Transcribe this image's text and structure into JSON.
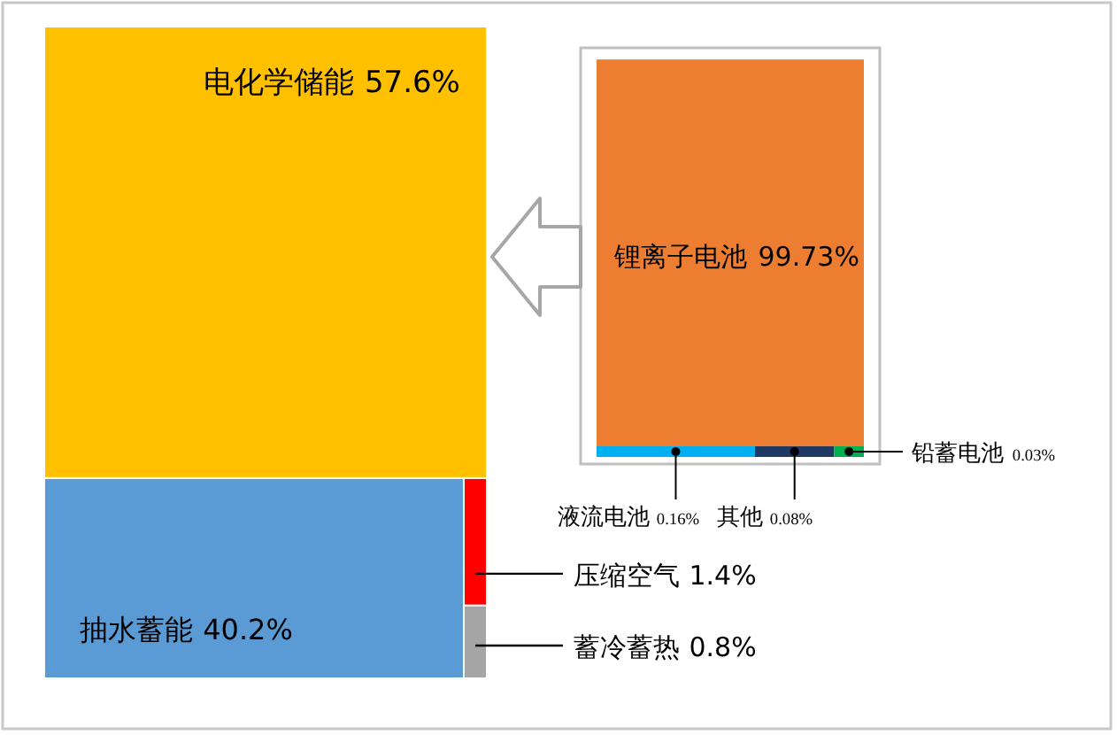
{
  "chart_data": [
    {
      "type": "other",
      "categories": [
        "电化学储能",
        "抽水蓄能",
        "压缩空气",
        "蓄冷蓄热"
      ],
      "values": [
        57.6,
        40.2,
        1.4,
        0.8
      ],
      "value_labels": [
        "57.6%",
        "40.2%",
        "1.4%",
        "0.8%"
      ],
      "colors": [
        "#ffc000",
        "#5b9bd5",
        "#ff0000",
        "#a5a5a5"
      ]
    },
    {
      "type": "other",
      "categories": [
        "锂离子电池",
        "液流电池",
        "其他",
        "铅蓄电池"
      ],
      "values": [
        99.73,
        0.16,
        0.08,
        0.03
      ],
      "value_labels": [
        "99.73%",
        "0.16%",
        "0.08%",
        "0.03%"
      ],
      "colors": [
        "#ed7d31",
        "#00b0f0",
        "#1f3864",
        "#00b050"
      ]
    }
  ]
}
